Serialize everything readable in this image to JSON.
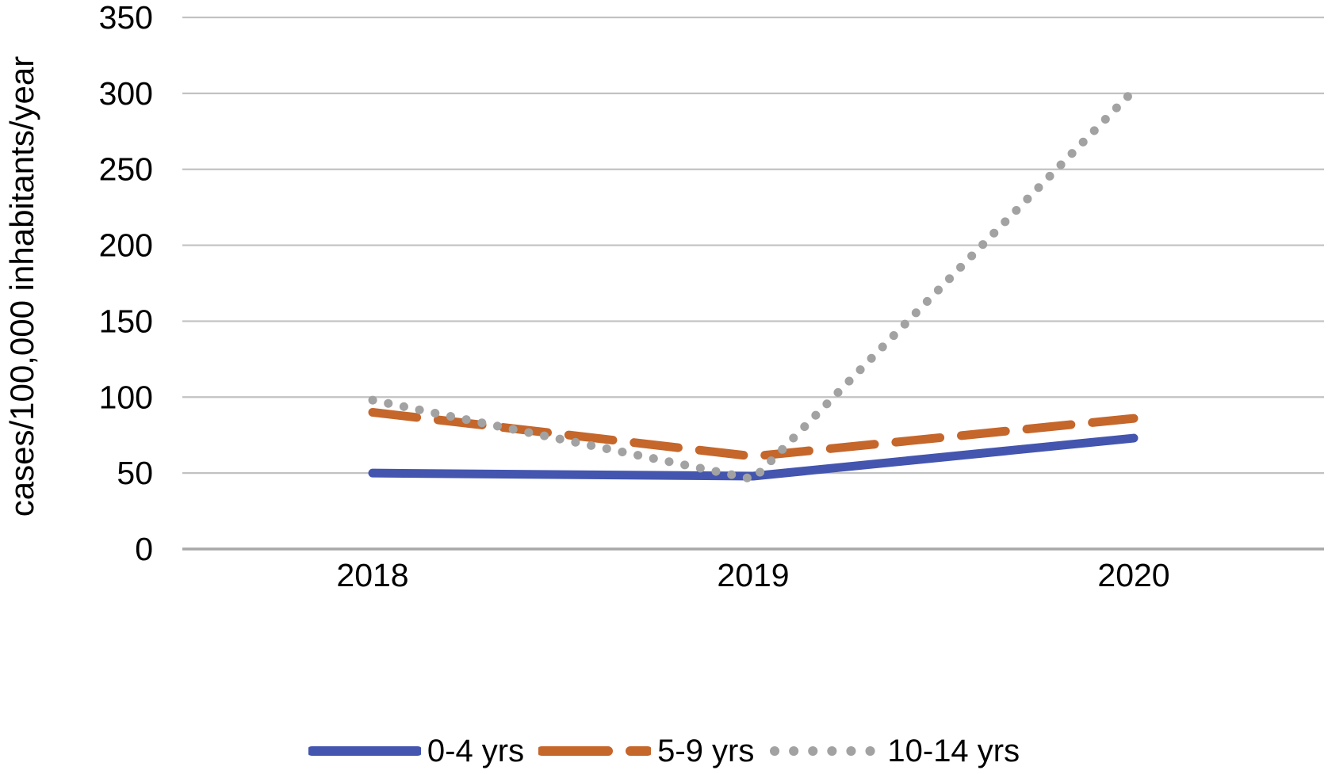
{
  "figure": {
    "background": "#ffffff",
    "text_color": "#000000",
    "gridline_color": "#C2C2C2",
    "axisline_color": "#A8A8A8"
  },
  "chart_data": {
    "type": "line",
    "title": "",
    "categories": [
      "2018",
      "2019",
      "2020"
    ],
    "series": [
      {
        "name": "0-4 yrs",
        "style": "solid",
        "color": "#4355AE",
        "values": [
          50,
          48,
          73
        ]
      },
      {
        "name": "5-9 yrs",
        "style": "dashed",
        "color": "#C5662B",
        "values": [
          90,
          61,
          86
        ]
      },
      {
        "name": "10-14 yrs",
        "style": "dotted",
        "color": "#A2A2A2",
        "values": [
          98,
          46,
          302
        ]
      }
    ],
    "xlabel": "",
    "ylabel": "cases/100,000 inhabitants/year",
    "ylim": [
      0,
      350
    ],
    "ytick_step": 50,
    "y_ticks": [
      0,
      50,
      100,
      150,
      200,
      250,
      300,
      350
    ],
    "grid": true,
    "legend_position": "bottom"
  }
}
